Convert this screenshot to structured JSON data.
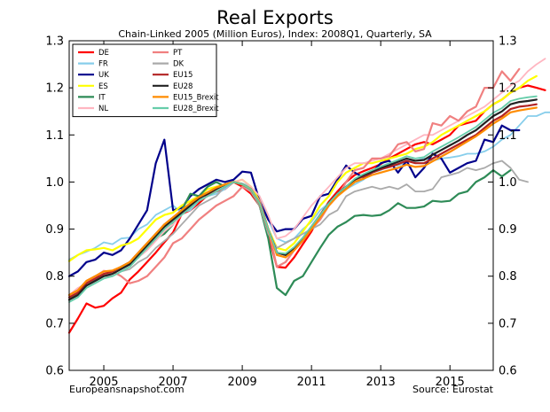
{
  "chart_data": {
    "type": "line",
    "title": "Real Exports",
    "subtitle": "Chain-Linked 2005 (Million Euros), Index: 2008Q1, Quarterly, SA",
    "xlabel": "",
    "ylabel": "",
    "xlim": [
      2004.0,
      2016.25
    ],
    "ylim": [
      0.6,
      1.3
    ],
    "x_ticks": [
      2005,
      2007,
      2009,
      2011,
      2013,
      2015
    ],
    "y_ticks": [
      0.6,
      0.7,
      0.8,
      0.9,
      1.0,
      1.1,
      1.2,
      1.3
    ],
    "y_ticks_right": true,
    "grid": false,
    "legend_position": "top-left",
    "legend_columns": 2,
    "source_left": "Europeansnapshot.com",
    "source_right": "Source: Eurostat",
    "x_start": 2004.0,
    "x_step": 0.25,
    "series": [
      {
        "name": "DE",
        "color": "#ff0000",
        "width": 2.2,
        "values": [
          0.68,
          0.71,
          0.742,
          0.733,
          0.737,
          0.753,
          0.765,
          0.793,
          0.81,
          0.83,
          0.85,
          0.872,
          0.893,
          0.932,
          0.94,
          0.955,
          0.972,
          0.98,
          0.985,
          1.0,
          0.99,
          0.975,
          0.95,
          0.89,
          0.82,
          0.818,
          0.84,
          0.868,
          0.895,
          0.93,
          0.958,
          0.98,
          1.0,
          1.015,
          1.023,
          1.03,
          1.038,
          1.05,
          1.06,
          1.07,
          1.08,
          1.085,
          1.08,
          1.09,
          1.1,
          1.12,
          1.125,
          1.13,
          1.15,
          1.165,
          1.175,
          1.19,
          1.2,
          1.205,
          1.2,
          1.195
        ]
      },
      {
        "name": "FR",
        "color": "#87ceeb",
        "width": 1.8,
        "values": [
          0.835,
          0.845,
          0.852,
          0.86,
          0.872,
          0.868,
          0.88,
          0.882,
          0.9,
          0.91,
          0.93,
          0.94,
          0.95,
          0.935,
          0.94,
          0.96,
          0.97,
          0.975,
          0.985,
          1.0,
          0.997,
          0.99,
          0.97,
          0.92,
          0.88,
          0.872,
          0.88,
          0.9,
          0.915,
          0.94,
          0.955,
          0.97,
          0.985,
          0.995,
          1.005,
          1.02,
          1.025,
          1.035,
          1.035,
          1.042,
          1.045,
          1.05,
          1.045,
          1.05,
          1.052,
          1.055,
          1.06,
          1.06,
          1.065,
          1.075,
          1.09,
          1.1,
          1.12,
          1.14,
          1.14,
          1.148,
          1.148
        ]
      },
      {
        "name": "UK",
        "color": "#00008b",
        "width": 2.2,
        "values": [
          0.8,
          0.81,
          0.83,
          0.835,
          0.85,
          0.845,
          0.855,
          0.88,
          0.91,
          0.94,
          1.04,
          1.09,
          0.94,
          0.945,
          0.97,
          0.985,
          0.995,
          1.005,
          1.0,
          1.005,
          1.022,
          1.02,
          0.96,
          0.92,
          0.895,
          0.9,
          0.9,
          0.922,
          0.928,
          0.97,
          0.975,
          1.005,
          1.035,
          1.02,
          1.01,
          1.02,
          1.04,
          1.045,
          1.02,
          1.045,
          1.01,
          1.03,
          1.06,
          1.05,
          1.02,
          1.03,
          1.04,
          1.045,
          1.09,
          1.085,
          1.12,
          1.11,
          1.11
        ]
      },
      {
        "name": "ES",
        "color": "#ffff00",
        "width": 2.2,
        "values": [
          0.832,
          0.845,
          0.855,
          0.857,
          0.86,
          0.855,
          0.865,
          0.87,
          0.88,
          0.9,
          0.92,
          0.93,
          0.935,
          0.95,
          0.96,
          0.97,
          0.985,
          0.99,
          0.995,
          1.0,
          1.005,
          0.99,
          0.96,
          0.9,
          0.86,
          0.855,
          0.87,
          0.895,
          0.92,
          0.95,
          0.97,
          1.0,
          1.02,
          1.03,
          1.04,
          1.04,
          1.045,
          1.05,
          1.055,
          1.06,
          1.07,
          1.075,
          1.085,
          1.1,
          1.11,
          1.12,
          1.13,
          1.14,
          1.15,
          1.165,
          1.175,
          1.19,
          1.2,
          1.215,
          1.225
        ]
      },
      {
        "name": "IT",
        "color": "#2e8b57",
        "width": 2.2,
        "values": [
          0.75,
          0.765,
          0.78,
          0.79,
          0.8,
          0.81,
          0.815,
          0.83,
          0.84,
          0.86,
          0.88,
          0.89,
          0.91,
          0.94,
          0.975,
          0.97,
          0.99,
          1.0,
          0.99,
          1.0,
          0.995,
          0.98,
          0.95,
          0.88,
          0.775,
          0.76,
          0.79,
          0.8,
          0.83,
          0.86,
          0.888,
          0.905,
          0.915,
          0.928,
          0.93,
          0.928,
          0.93,
          0.94,
          0.955,
          0.945,
          0.945,
          0.948,
          0.96,
          0.958,
          0.96,
          0.975,
          0.98,
          1.0,
          1.01,
          1.025,
          1.012,
          1.025
        ]
      },
      {
        "name": "NL",
        "color": "#ffb6c1",
        "width": 1.8,
        "values": [
          0.76,
          0.775,
          0.785,
          0.8,
          0.812,
          0.808,
          0.815,
          0.825,
          0.84,
          0.855,
          0.875,
          0.895,
          0.91,
          0.93,
          0.95,
          0.96,
          0.97,
          0.98,
          0.99,
          1.0,
          1.005,
          0.99,
          0.97,
          0.93,
          0.88,
          0.885,
          0.9,
          0.925,
          0.95,
          0.97,
          0.99,
          1.01,
          1.03,
          1.04,
          1.04,
          1.045,
          1.05,
          1.06,
          1.07,
          1.08,
          1.09,
          1.1,
          1.1,
          1.11,
          1.12,
          1.13,
          1.14,
          1.15,
          1.16,
          1.175,
          1.19,
          1.205,
          1.215,
          1.235,
          1.25,
          1.262
        ]
      },
      {
        "name": "PT",
        "color": "#f08080",
        "width": 2.2,
        "values": [
          0.76,
          0.77,
          0.79,
          0.8,
          0.8,
          0.81,
          0.8,
          0.785,
          0.79,
          0.8,
          0.82,
          0.84,
          0.87,
          0.88,
          0.9,
          0.92,
          0.935,
          0.95,
          0.96,
          0.97,
          0.99,
          0.98,
          0.96,
          0.9,
          0.82,
          0.83,
          0.855,
          0.875,
          0.9,
          0.92,
          0.95,
          0.97,
          1.0,
          1.025,
          1.03,
          1.05,
          1.05,
          1.055,
          1.08,
          1.085,
          1.065,
          1.07,
          1.125,
          1.12,
          1.14,
          1.13,
          1.15,
          1.16,
          1.2,
          1.2,
          1.235,
          1.215,
          1.24
        ]
      },
      {
        "name": "DK",
        "color": "#aaaaaa",
        "width": 1.8,
        "values": [
          0.76,
          0.77,
          0.78,
          0.79,
          0.8,
          0.8,
          0.81,
          0.815,
          0.83,
          0.84,
          0.86,
          0.875,
          0.89,
          0.91,
          0.93,
          0.95,
          0.96,
          0.97,
          0.99,
          1.0,
          0.995,
          0.98,
          0.95,
          0.89,
          0.86,
          0.87,
          0.88,
          0.89,
          0.9,
          0.91,
          0.93,
          0.94,
          0.97,
          0.98,
          0.985,
          0.99,
          0.985,
          0.99,
          0.985,
          0.995,
          0.98,
          0.98,
          0.985,
          1.01,
          1.015,
          1.02,
          1.03,
          1.025,
          1.03,
          1.04,
          1.045,
          1.03,
          1.005,
          1.0
        ]
      },
      {
        "name": "EU15",
        "color": "#b22222",
        "width": 2.2,
        "values": [
          0.755,
          0.765,
          0.785,
          0.795,
          0.805,
          0.81,
          0.82,
          0.83,
          0.85,
          0.87,
          0.89,
          0.91,
          0.925,
          0.94,
          0.955,
          0.968,
          0.978,
          0.988,
          0.995,
          1.0,
          0.995,
          0.985,
          0.955,
          0.9,
          0.85,
          0.845,
          0.86,
          0.88,
          0.905,
          0.93,
          0.955,
          0.975,
          0.99,
          1.005,
          1.012,
          1.02,
          1.027,
          1.032,
          1.038,
          1.045,
          1.04,
          1.04,
          1.05,
          1.06,
          1.07,
          1.08,
          1.09,
          1.1,
          1.115,
          1.13,
          1.14,
          1.155,
          1.16,
          1.162,
          1.165
        ]
      },
      {
        "name": "EU28",
        "color": "#222222",
        "width": 2.2,
        "values": [
          0.75,
          0.76,
          0.78,
          0.79,
          0.8,
          0.805,
          0.815,
          0.825,
          0.845,
          0.865,
          0.885,
          0.905,
          0.92,
          0.935,
          0.95,
          0.965,
          0.975,
          0.985,
          0.995,
          1.0,
          0.995,
          0.985,
          0.955,
          0.9,
          0.85,
          0.845,
          0.86,
          0.88,
          0.905,
          0.93,
          0.955,
          0.975,
          0.99,
          1.005,
          1.015,
          1.022,
          1.03,
          1.036,
          1.043,
          1.05,
          1.045,
          1.047,
          1.058,
          1.068,
          1.078,
          1.088,
          1.1,
          1.11,
          1.125,
          1.14,
          1.15,
          1.165,
          1.17,
          1.172,
          1.175
        ]
      },
      {
        "name": "EU15_Brexit",
        "color": "#ff8c00",
        "width": 2.2,
        "values": [
          0.76,
          0.77,
          0.79,
          0.8,
          0.81,
          0.812,
          0.82,
          0.83,
          0.85,
          0.87,
          0.89,
          0.91,
          0.925,
          0.94,
          0.955,
          0.968,
          0.978,
          0.988,
          0.995,
          1.0,
          0.995,
          0.985,
          0.955,
          0.9,
          0.845,
          0.84,
          0.855,
          0.876,
          0.9,
          0.925,
          0.95,
          0.97,
          0.985,
          1.0,
          1.007,
          1.015,
          1.02,
          1.025,
          1.03,
          1.037,
          1.032,
          1.034,
          1.044,
          1.054,
          1.064,
          1.075,
          1.086,
          1.097,
          1.11,
          1.124,
          1.135,
          1.148,
          1.152,
          1.155,
          1.158
        ]
      },
      {
        "name": "EU28_Brexit",
        "color": "#66cdaa",
        "width": 1.8,
        "values": [
          0.745,
          0.755,
          0.775,
          0.785,
          0.795,
          0.8,
          0.81,
          0.82,
          0.84,
          0.86,
          0.88,
          0.9,
          0.915,
          0.93,
          0.945,
          0.96,
          0.97,
          0.98,
          0.99,
          1.0,
          0.995,
          0.985,
          0.955,
          0.9,
          0.85,
          0.848,
          0.862,
          0.882,
          0.906,
          0.93,
          0.955,
          0.975,
          0.99,
          1.007,
          1.017,
          1.025,
          1.033,
          1.04,
          1.047,
          1.055,
          1.05,
          1.053,
          1.065,
          1.075,
          1.085,
          1.095,
          1.106,
          1.117,
          1.132,
          1.147,
          1.157,
          1.172,
          1.177,
          1.18,
          1.182
        ]
      }
    ]
  }
}
